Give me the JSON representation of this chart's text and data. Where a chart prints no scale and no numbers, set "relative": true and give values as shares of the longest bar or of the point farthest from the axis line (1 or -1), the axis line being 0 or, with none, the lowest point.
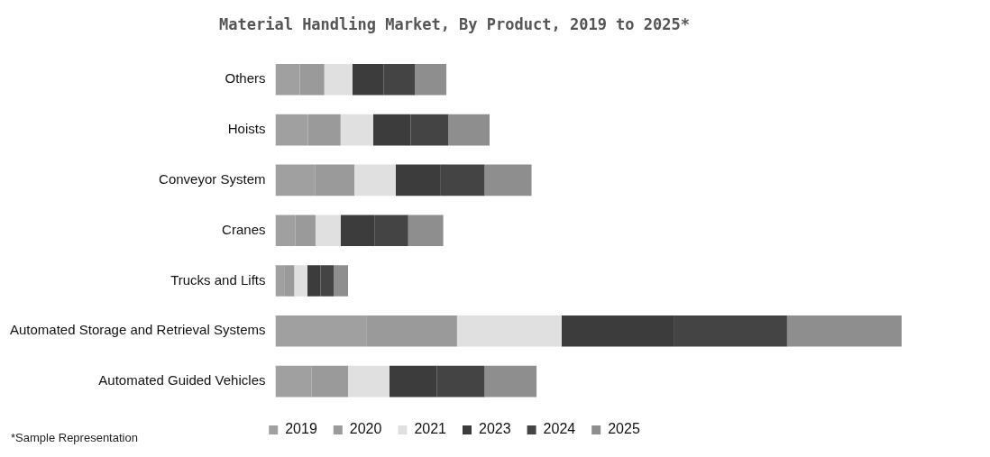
{
  "chart_data": {
    "type": "bar",
    "orientation": "horizontal",
    "stacked": true,
    "relative": true,
    "title": "Material Handling Market, By Product, 2019 to 2025*",
    "annotations": [
      "*Sample Representation"
    ],
    "legend": "bottom",
    "grid": false,
    "categories": [
      "Others",
      "Hoists",
      "Conveyor System",
      "Cranes",
      "Trucks and Lifts",
      "Automated Storage and Retrieval Systems",
      "Automated Guided Vehicles"
    ],
    "series": [
      {
        "name": "2019",
        "color": "#a0a0a0",
        "values": [
          0.039,
          0.052,
          0.063,
          0.032,
          0.015,
          0.145,
          0.058
        ]
      },
      {
        "name": "2020",
        "color": "#9a9a9a",
        "values": [
          0.039,
          0.052,
          0.063,
          0.032,
          0.015,
          0.145,
          0.058
        ]
      },
      {
        "name": "2021",
        "color": "#e0e0e0",
        "values": [
          0.045,
          0.052,
          0.066,
          0.04,
          0.021,
          0.167,
          0.066
        ]
      },
      {
        "name": "2023",
        "color": "#3c3c3c",
        "values": [
          0.05,
          0.06,
          0.071,
          0.054,
          0.021,
          0.18,
          0.076
        ]
      },
      {
        "name": "2024",
        "color": "#444444",
        "values": [
          0.05,
          0.06,
          0.071,
          0.054,
          0.021,
          0.18,
          0.076
        ]
      },
      {
        "name": "2025",
        "color": "#8e8e8e",
        "values": [
          0.05,
          0.066,
          0.075,
          0.056,
          0.023,
          0.183,
          0.083
        ]
      }
    ]
  }
}
